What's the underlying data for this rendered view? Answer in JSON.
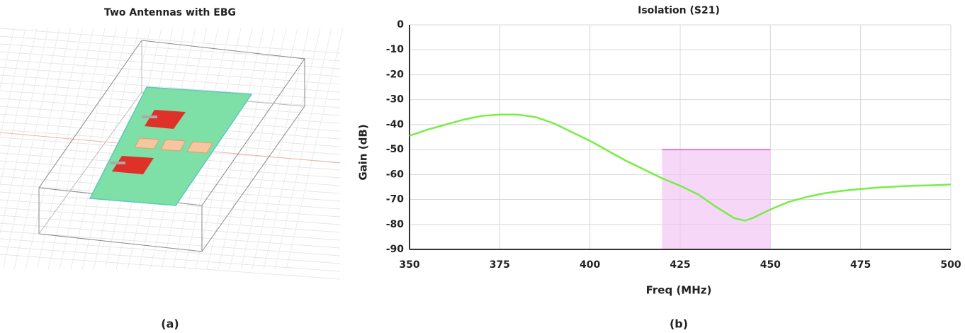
{
  "panel_a": {
    "title": "Two Antennas with EBG",
    "caption": "(a)"
  },
  "chart_data": {
    "type": "line",
    "title": "Isolation (S21)",
    "x_label": "Freq (MHz)",
    "y_label": "Gain (dB)",
    "caption": "(b)",
    "x": [
      350,
      355,
      360,
      365,
      370,
      375,
      380,
      385,
      390,
      395,
      400,
      405,
      410,
      415,
      420,
      425,
      430,
      435,
      440,
      443,
      445,
      450,
      455,
      460,
      465,
      470,
      475,
      480,
      485,
      490,
      495,
      500
    ],
    "series": [
      {
        "color": "#77ee44",
        "values": [
          -44.5,
          -42,
          -40,
          -38,
          -36.5,
          -36,
          -36,
          -37,
          -39.5,
          -43,
          -46.5,
          -50.5,
          -54.5,
          -58,
          -61.5,
          -64.5,
          -68,
          -73,
          -77.5,
          -78.5,
          -77.5,
          -74,
          -71,
          -69,
          -67.5,
          -66.5,
          -65.8,
          -65.2,
          -64.8,
          -64.5,
          -64.3,
          -64
        ]
      }
    ],
    "highlight": {
      "xlim": [
        420,
        450
      ],
      "ylim": [
        -90,
        -50
      ],
      "color": "#f4c6f4",
      "edge": "#e07ae0"
    },
    "xlim": [
      350,
      500
    ],
    "xticks": [
      350,
      375,
      400,
      425,
      450,
      475,
      500
    ],
    "ylim": [
      -90,
      0
    ],
    "yticks": [
      0,
      -10,
      -20,
      -30,
      -40,
      -50,
      -60,
      -70,
      -80,
      -90
    ],
    "grid": true
  }
}
